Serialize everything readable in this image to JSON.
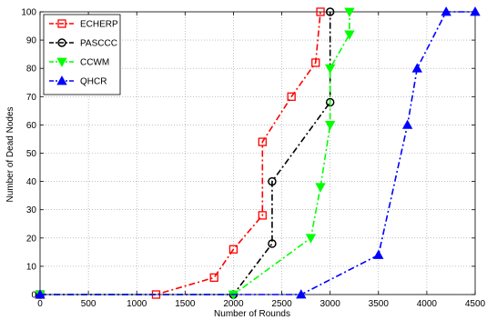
{
  "chart_data": {
    "type": "line",
    "title": "",
    "xlabel": "Number of Rounds",
    "ylabel": "Number of Dead Nodes",
    "xlim": [
      0,
      4500
    ],
    "ylim": [
      0,
      100
    ],
    "xticks": [
      0,
      500,
      1000,
      1500,
      2000,
      2500,
      3000,
      3500,
      4000,
      4500
    ],
    "yticks": [
      0,
      10,
      20,
      30,
      40,
      50,
      60,
      70,
      80,
      90,
      100
    ],
    "grid": true,
    "legend": "top-left",
    "series": [
      {
        "name": "ECHERP",
        "color": "#ff0000",
        "marker": "square",
        "points": [
          [
            0,
            0
          ],
          [
            1200,
            0
          ],
          [
            1800,
            6
          ],
          [
            2000,
            16
          ],
          [
            2300,
            28
          ],
          [
            2300,
            54
          ],
          [
            2600,
            70
          ],
          [
            2850,
            82
          ],
          [
            2900,
            100
          ]
        ]
      },
      {
        "name": "PASCCC",
        "color": "#000000",
        "marker": "circle",
        "points": [
          [
            0,
            0
          ],
          [
            2000,
            0
          ],
          [
            2400,
            18
          ],
          [
            2400,
            40
          ],
          [
            3000,
            68
          ],
          [
            3000,
            100
          ]
        ]
      },
      {
        "name": "CCWM",
        "color": "#00ff00",
        "marker": "triangle-down",
        "points": [
          [
            0,
            0
          ],
          [
            2000,
            0
          ],
          [
            2800,
            20
          ],
          [
            2900,
            38
          ],
          [
            3000,
            60
          ],
          [
            3000,
            80
          ],
          [
            3200,
            92
          ],
          [
            3200,
            100
          ]
        ]
      },
      {
        "name": "QHCR",
        "color": "#0000ff",
        "marker": "triangle-up",
        "points": [
          [
            0,
            0
          ],
          [
            2700,
            0
          ],
          [
            3500,
            14
          ],
          [
            3800,
            60
          ],
          [
            3900,
            80
          ],
          [
            4200,
            100
          ],
          [
            4500,
            100
          ]
        ]
      }
    ]
  }
}
